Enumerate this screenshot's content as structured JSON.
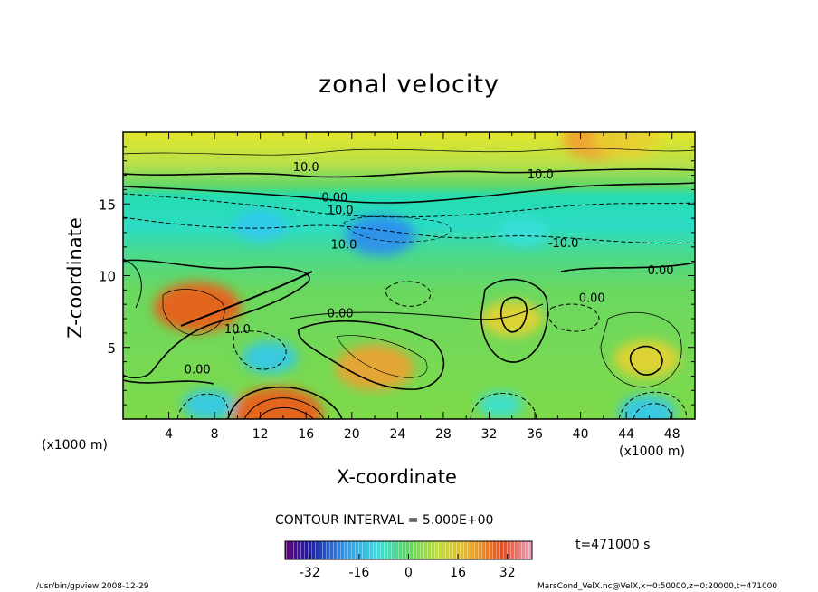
{
  "chart_data": {
    "type": "heatmap",
    "title": "zonal velocity",
    "xlabel": "X-coordinate",
    "ylabel": "Z-coordinate",
    "x_unit_left": "(x1000 m)",
    "x_unit_right": "(x1000 m)",
    "xlim": [
      0,
      50
    ],
    "ylim": [
      0,
      20
    ],
    "x_ticks": [
      4,
      8,
      12,
      16,
      20,
      24,
      28,
      32,
      36,
      40,
      44,
      48
    ],
    "y_ticks": [
      5,
      10,
      15
    ],
    "contour_interval_text": "CONTOUR INTERVAL = 5.000E+00",
    "contour_labels": [
      {
        "text": "10.0",
        "x": 16.0,
        "z": 17.6
      },
      {
        "text": "10.0",
        "x": 36.5,
        "z": 17.1
      },
      {
        "text": "0.00",
        "x": 18.5,
        "z": 15.5
      },
      {
        "text": "10.0",
        "x": 19.0,
        "z": 14.6
      },
      {
        "text": "10.0",
        "x": 19.3,
        "z": 12.2
      },
      {
        "text": "-10.0",
        "x": 38.5,
        "z": 12.3
      },
      {
        "text": "0.00",
        "x": 47.0,
        "z": 10.4
      },
      {
        "text": "0.00",
        "x": 41.0,
        "z": 8.5
      },
      {
        "text": "10.0",
        "x": 10.0,
        "z": 6.3
      },
      {
        "text": "0.00",
        "x": 19.0,
        "z": 7.4
      },
      {
        "text": "0.00",
        "x": 6.5,
        "z": 3.5
      }
    ],
    "colorbar": {
      "ticks": [
        -32,
        -16,
        0,
        16,
        32
      ],
      "range": [
        -40,
        40
      ]
    },
    "time_label": "t=471000 s",
    "footer_left": "/usr/bin/gpview  2008-12-29",
    "footer_right": "MarsCond_VelX.nc@VelX,x=0:50000,z=0:20000,t=471000",
    "series": [
      {
        "kind": "positive",
        "x": 6.5,
        "z": 7.8,
        "value": 30
      },
      {
        "kind": "positive",
        "x": 22.0,
        "z": 3.6,
        "value": 26
      },
      {
        "kind": "positive",
        "x": 13.5,
        "z": 0.4,
        "value": 32
      },
      {
        "kind": "positive",
        "x": 45.8,
        "z": 4.2,
        "value": 20
      },
      {
        "kind": "positive",
        "x": 34.0,
        "z": 7.0,
        "value": 18
      },
      {
        "kind": "positive",
        "x": 41.5,
        "z": 19.5,
        "value": 22
      },
      {
        "kind": "positive",
        "x": 44.0,
        "z": 19.5,
        "value": 20
      },
      {
        "kind": "negative",
        "x": 22.5,
        "z": 12.8,
        "value": -22
      },
      {
        "kind": "negative",
        "x": 12.0,
        "z": 13.5,
        "value": -14
      },
      {
        "kind": "negative",
        "x": 35.0,
        "z": 13.0,
        "value": -13
      },
      {
        "kind": "negative",
        "x": 12.8,
        "z": 4.3,
        "value": -15
      },
      {
        "kind": "negative",
        "x": 45.8,
        "z": 0.5,
        "value": -16
      },
      {
        "kind": "negative",
        "x": 33.0,
        "z": 1.0,
        "value": -10
      },
      {
        "kind": "negative",
        "x": 7.5,
        "z": 1.0,
        "value": -14
      }
    ]
  }
}
